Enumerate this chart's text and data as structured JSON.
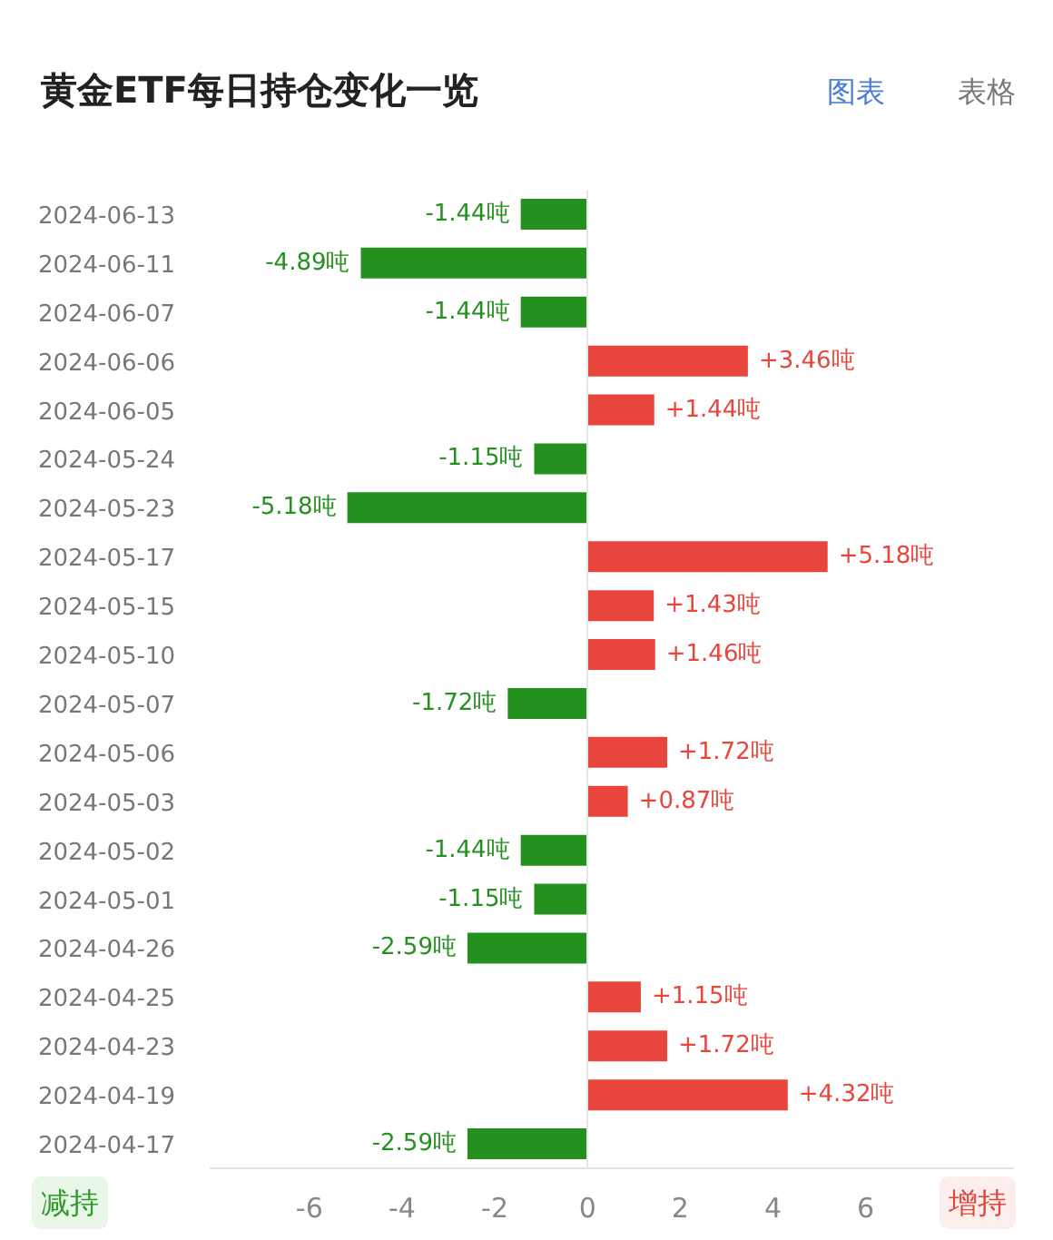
{
  "chart_data": {
    "type": "bar",
    "orientation": "horizontal",
    "title": "黄金ETF每日持仓变化一览",
    "categories": [
      "2024-06-13",
      "2024-06-11",
      "2024-06-07",
      "2024-06-06",
      "2024-06-05",
      "2024-05-24",
      "2024-05-23",
      "2024-05-17",
      "2024-05-15",
      "2024-05-10",
      "2024-05-07",
      "2024-05-06",
      "2024-05-03",
      "2024-05-02",
      "2024-05-01",
      "2024-04-26",
      "2024-04-25",
      "2024-04-23",
      "2024-04-19",
      "2024-04-17"
    ],
    "values": [
      -1.44,
      -4.89,
      -1.44,
      3.46,
      1.44,
      -1.15,
      -5.18,
      5.18,
      1.43,
      1.46,
      -1.72,
      1.72,
      0.87,
      -1.44,
      -1.15,
      -2.59,
      1.15,
      1.72,
      4.32,
      -2.59
    ],
    "colors": [
      "#24911f",
      "#24911f",
      "#24911f",
      "#e8463c",
      "#e8463c",
      "#24911f",
      "#24911f",
      "#e8463c",
      "#e8463c",
      "#e8463c",
      "#24911f",
      "#e8463c",
      "#e8463c",
      "#24911f",
      "#24911f",
      "#24911f",
      "#e8463c",
      "#e8463c",
      "#e8463c",
      "#24911f"
    ],
    "value_labels": [
      "-1.44吨",
      "-4.89吨",
      "-1.44吨",
      "+3.46吨",
      "+1.44吨",
      "-1.15吨",
      "-5.18吨",
      "+5.18吨",
      "+1.43吨",
      "+1.46吨",
      "-1.72吨",
      "+1.72吨",
      "+0.87吨",
      "-1.44吨",
      "-1.15吨",
      "-2.59吨",
      "+1.15吨",
      "+1.72吨",
      "+4.32吨",
      "-2.59吨"
    ],
    "xlim": [
      -8.15,
      9.2
    ],
    "xticks": [
      -6,
      -4,
      -2,
      0,
      2,
      4,
      6
    ],
    "annotations": [
      "图表",
      "表格",
      "减持",
      "增持"
    ]
  }
}
